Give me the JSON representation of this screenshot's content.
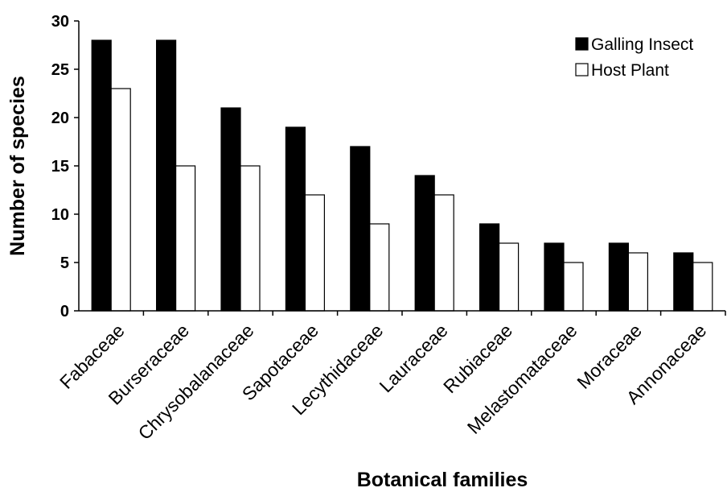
{
  "chart_data": {
    "type": "bar",
    "title": "",
    "xlabel": "Botanical families",
    "ylabel": "Number of species",
    "ylim": [
      0,
      30
    ],
    "yticks": [
      0,
      5,
      10,
      15,
      20,
      25,
      30
    ],
    "grid": false,
    "legend_position": "top-right",
    "categories": [
      "Fabaceae",
      "Burseraceae",
      "Chrysobalanaceae",
      "Sapotaceae",
      "Lecythidaceae",
      "Lauraceae",
      "Rubiaceae",
      "Melastomataceae",
      "Moraceae",
      "Annonaceae"
    ],
    "series": [
      {
        "name": "Galling Insect",
        "color": "#000000",
        "values": [
          28,
          28,
          21,
          19,
          17,
          14,
          9,
          7,
          7,
          6
        ]
      },
      {
        "name": "Host Plant",
        "color": "#ffffff",
        "values": [
          23,
          15,
          15,
          12,
          9,
          12,
          7,
          5,
          6,
          5
        ]
      }
    ]
  }
}
